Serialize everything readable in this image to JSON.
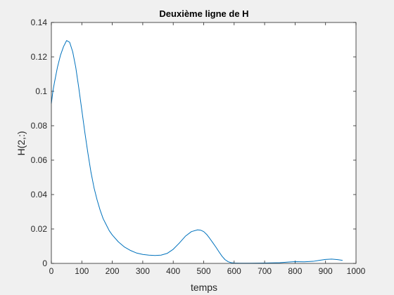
{
  "chart_data": {
    "type": "line",
    "title": "Deuxième ligne de H",
    "xlabel": "temps",
    "ylabel": "H(2,:)",
    "xlim": [
      0,
      1000
    ],
    "ylim": [
      0,
      0.14
    ],
    "xticks": [
      0,
      100,
      200,
      300,
      400,
      500,
      600,
      700,
      800,
      900,
      1000
    ],
    "yticks": [
      0,
      0.02,
      0.04,
      0.06,
      0.08,
      0.1,
      0.12,
      0.14
    ],
    "grid": false,
    "legend": "none",
    "series": [
      {
        "color": "#0072bd",
        "x": [
          0,
          5,
          10,
          20,
          30,
          40,
          50,
          60,
          70,
          80,
          90,
          100,
          110,
          120,
          130,
          140,
          150,
          160,
          170,
          180,
          190,
          200,
          220,
          240,
          260,
          280,
          300,
          320,
          340,
          360,
          380,
          400,
          420,
          440,
          460,
          480,
          490,
          500,
          510,
          520,
          530,
          540,
          550,
          560,
          570,
          580,
          590,
          600,
          620,
          650,
          700,
          750,
          780,
          800,
          830,
          860,
          880,
          900,
          920,
          940,
          955
        ],
        "y": [
          0.093,
          0.1,
          0.105,
          0.114,
          0.121,
          0.126,
          0.1295,
          0.1285,
          0.123,
          0.114,
          0.102,
          0.089,
          0.076,
          0.064,
          0.053,
          0.044,
          0.037,
          0.031,
          0.026,
          0.0225,
          0.019,
          0.0165,
          0.0125,
          0.0095,
          0.0075,
          0.006,
          0.0052,
          0.0048,
          0.0046,
          0.0048,
          0.0058,
          0.0082,
          0.0118,
          0.0158,
          0.0185,
          0.0195,
          0.0193,
          0.0185,
          0.0168,
          0.0145,
          0.012,
          0.0095,
          0.0068,
          0.0042,
          0.0022,
          0.001,
          0.0004,
          0.0002,
          0.0001,
          0.0001,
          0.0002,
          0.0004,
          0.0008,
          0.001,
          0.0009,
          0.0012,
          0.0018,
          0.0023,
          0.0025,
          0.0022,
          0.0018
        ]
      }
    ]
  }
}
